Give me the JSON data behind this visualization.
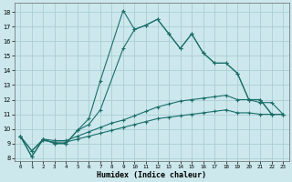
{
  "xlabel": "Humidex (Indice chaleur)",
  "bg_color": "#cce8ec",
  "grid_color": "#aacdd4",
  "line_color": "#1a6e6a",
  "xlim": [
    -0.5,
    23.5
  ],
  "ylim": [
    7.8,
    18.6
  ],
  "xticks": [
    0,
    1,
    2,
    3,
    4,
    5,
    6,
    7,
    8,
    9,
    10,
    11,
    12,
    13,
    14,
    15,
    16,
    17,
    18,
    19,
    20,
    21,
    22,
    23
  ],
  "yticks": [
    8,
    9,
    10,
    11,
    12,
    13,
    14,
    15,
    16,
    17,
    18
  ],
  "line1_x": [
    0,
    1,
    2,
    3,
    4,
    5,
    6,
    7,
    9,
    10,
    11,
    12,
    13,
    14,
    15,
    16,
    17,
    18,
    19,
    20,
    21,
    22,
    23
  ],
  "line1_y": [
    9.5,
    8.1,
    9.3,
    9.0,
    9.0,
    9.9,
    10.7,
    13.3,
    18.1,
    16.8,
    17.1,
    17.5,
    16.5,
    15.5,
    16.5,
    15.2,
    14.5,
    14.5,
    13.8,
    12.0,
    12.0,
    11.0,
    11.0
  ],
  "line2_x": [
    0,
    1,
    2,
    3,
    4,
    5,
    6,
    7,
    9,
    10,
    11,
    12,
    13,
    14,
    15,
    16,
    17,
    18,
    19,
    20,
    21,
    22,
    23
  ],
  "line2_y": [
    9.5,
    8.1,
    9.3,
    9.0,
    9.0,
    9.9,
    10.3,
    11.3,
    15.5,
    16.8,
    17.1,
    17.5,
    16.5,
    15.5,
    16.5,
    15.2,
    14.5,
    14.5,
    13.8,
    12.0,
    12.0,
    11.0,
    11.0
  ],
  "line3_x": [
    0,
    1,
    2,
    3,
    4,
    5,
    6,
    7,
    8,
    9,
    10,
    11,
    12,
    13,
    14,
    15,
    16,
    17,
    18,
    19,
    20,
    21,
    22,
    23
  ],
  "line3_y": [
    9.5,
    8.5,
    9.3,
    9.2,
    9.2,
    9.5,
    9.8,
    10.1,
    10.4,
    10.6,
    10.9,
    11.2,
    11.5,
    11.7,
    11.9,
    12.0,
    12.1,
    12.2,
    12.3,
    12.0,
    12.0,
    11.8,
    11.8,
    11.0
  ],
  "line4_x": [
    0,
    1,
    2,
    3,
    4,
    5,
    6,
    7,
    8,
    9,
    10,
    11,
    12,
    13,
    14,
    15,
    16,
    17,
    18,
    19,
    20,
    21,
    22,
    23
  ],
  "line4_y": [
    9.5,
    8.5,
    9.2,
    9.1,
    9.1,
    9.3,
    9.5,
    9.7,
    9.9,
    10.1,
    10.3,
    10.5,
    10.7,
    10.8,
    10.9,
    11.0,
    11.1,
    11.2,
    11.3,
    11.1,
    11.1,
    11.0,
    11.0,
    11.0
  ]
}
